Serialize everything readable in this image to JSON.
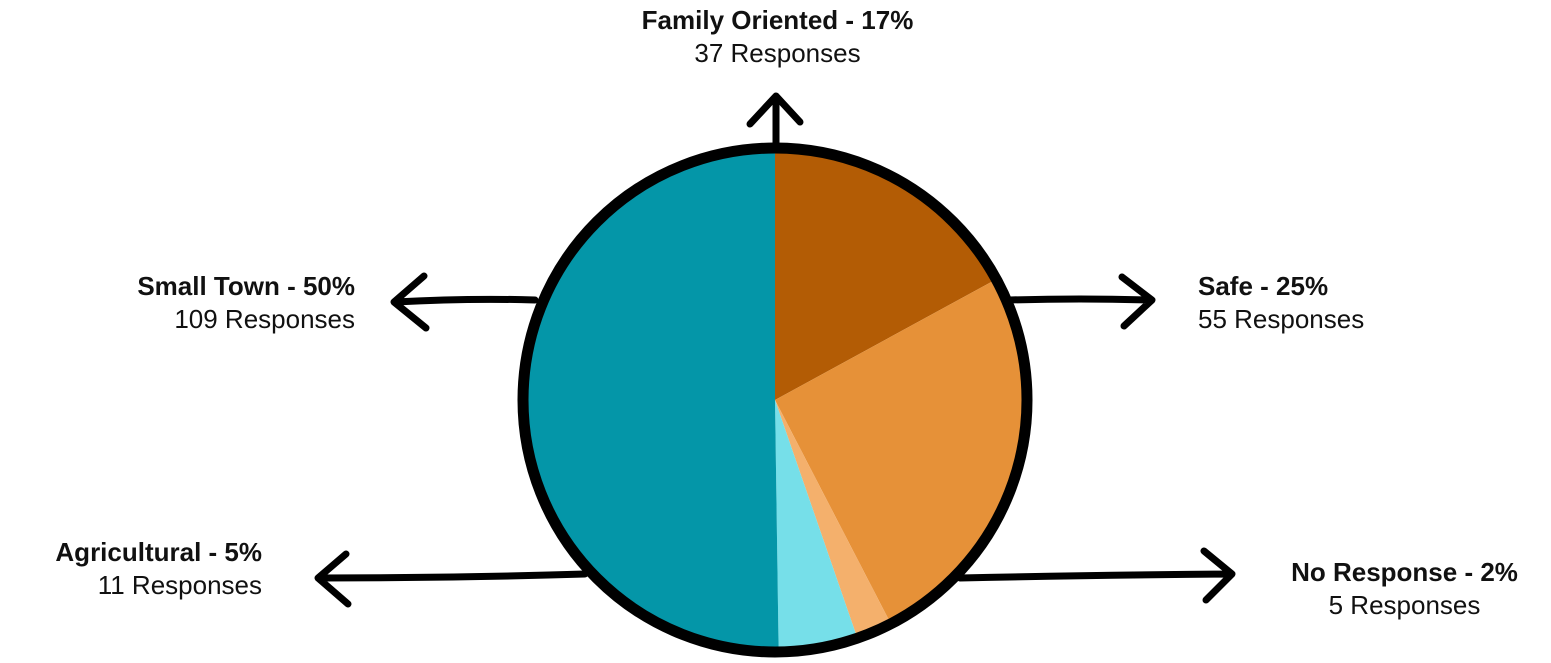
{
  "chart_data": {
    "type": "pie",
    "title": "",
    "slices": [
      {
        "name": "Family Oriented",
        "percent_label": "17%",
        "responses": 37,
        "responses_label": "37 Responses",
        "color": "#b35c05"
      },
      {
        "name": "Safe",
        "percent_label": "25%",
        "responses": 55,
        "responses_label": "55 Responses",
        "color": "#e69138"
      },
      {
        "name": "No Response",
        "percent_label": "2%",
        "responses": 5,
        "responses_label": "5 Responses",
        "color": "#f4b06c"
      },
      {
        "name": "Agricultural",
        "percent_label": "5%",
        "responses": 11,
        "responses_label": "11 Responses",
        "color": "#76dfe9"
      },
      {
        "name": "Small Town",
        "percent_label": "50%",
        "responses": 109,
        "responses_label": "109 Responses",
        "color": "#0496a8"
      }
    ],
    "start": "top",
    "direction": "clockwise",
    "outline_color": "#000000"
  },
  "labels": {
    "family": {
      "title": "Family Oriented - 17%",
      "count": "37 Responses"
    },
    "safe": {
      "title": "Safe - 25%",
      "count": "55 Responses"
    },
    "noresp": {
      "title": "No Response - 2%",
      "count": "5 Responses"
    },
    "agri": {
      "title": "Agricultural - 5%",
      "count": "11 Responses"
    },
    "small": {
      "title": "Small Town - 50%",
      "count": "109 Responses"
    }
  }
}
